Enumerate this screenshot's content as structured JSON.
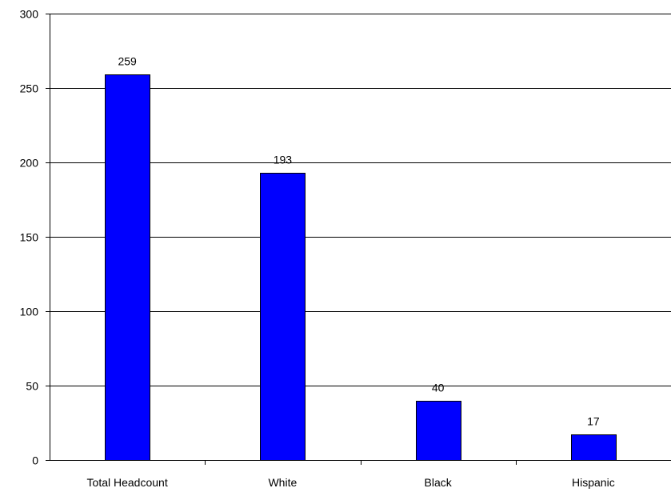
{
  "chart_data": {
    "type": "bar",
    "title": "",
    "xlabel": "",
    "ylabel": "",
    "categories": [
      "Total Headcount",
      "White",
      "Black",
      "Hispanic"
    ],
    "values": [
      259,
      193,
      40,
      17
    ],
    "data_labels": [
      "259",
      "193",
      "40",
      "17"
    ],
    "ylim": [
      0,
      300
    ],
    "yticks": [
      0,
      50,
      100,
      150,
      200,
      250,
      300
    ],
    "ytick_labels": [
      "0",
      "50",
      "100",
      "150",
      "200",
      "250",
      "300"
    ],
    "grid": true,
    "legend": "none",
    "bar_color": "#0000FF"
  }
}
